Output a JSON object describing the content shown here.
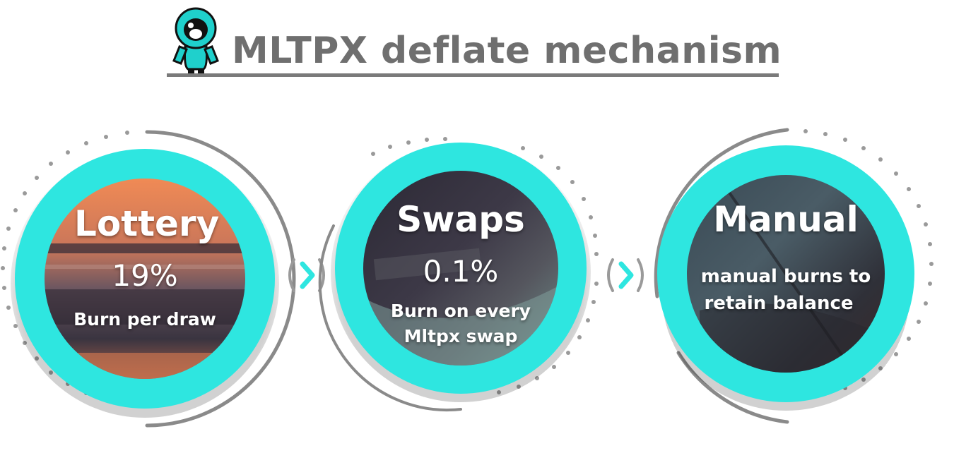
{
  "header": {
    "title": "MLTPX deflate mechanism",
    "mascot_icon": "astronaut-mascot-icon"
  },
  "colors": {
    "ring": "#2ee6e0",
    "title": "#6f6f6f",
    "arc": "#8a8a8a",
    "dots": "#9a9a9a"
  },
  "nodes": [
    {
      "heading": "Lottery",
      "value": "19%",
      "caption": "Burn per draw"
    },
    {
      "heading": "Swaps",
      "value": "0.1%",
      "caption_line1": "Burn on every",
      "caption_line2": "Mltpx swap"
    },
    {
      "heading": "Manual",
      "caption_line1": "manual burns to",
      "caption_line2": "retain balance"
    }
  ],
  "connectors": [
    {
      "icon": "chevron-right-icon"
    },
    {
      "icon": "chevron-right-icon"
    }
  ]
}
